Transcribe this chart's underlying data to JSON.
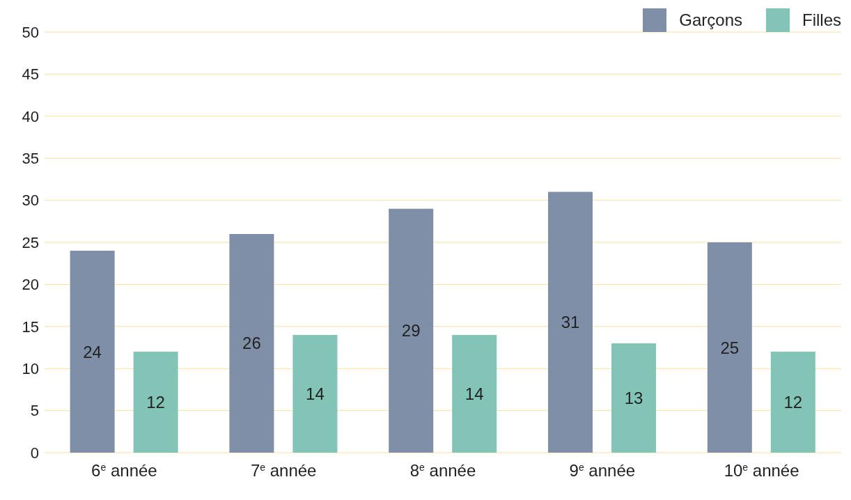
{
  "chart_data": {
    "type": "bar",
    "categories": [
      "6$^{e}$ année",
      "7$^{e}$ année",
      "8$^{e}$ année",
      "9$^{e}$ année",
      "10$^{e}$ année"
    ],
    "series": [
      {
        "name": "Garçons",
        "color": "#7f8fa8",
        "values": [
          24,
          26,
          29,
          31,
          25
        ]
      },
      {
        "name": "Filles",
        "color": "#82c4b5",
        "values": [
          12,
          14,
          14,
          13,
          12
        ]
      }
    ],
    "ylim": [
      0,
      50
    ],
    "yticks": [
      0,
      5,
      10,
      15,
      20,
      25,
      30,
      35,
      40,
      45,
      50
    ],
    "grid": "y",
    "legend": "top right",
    "data_labels": true
  }
}
